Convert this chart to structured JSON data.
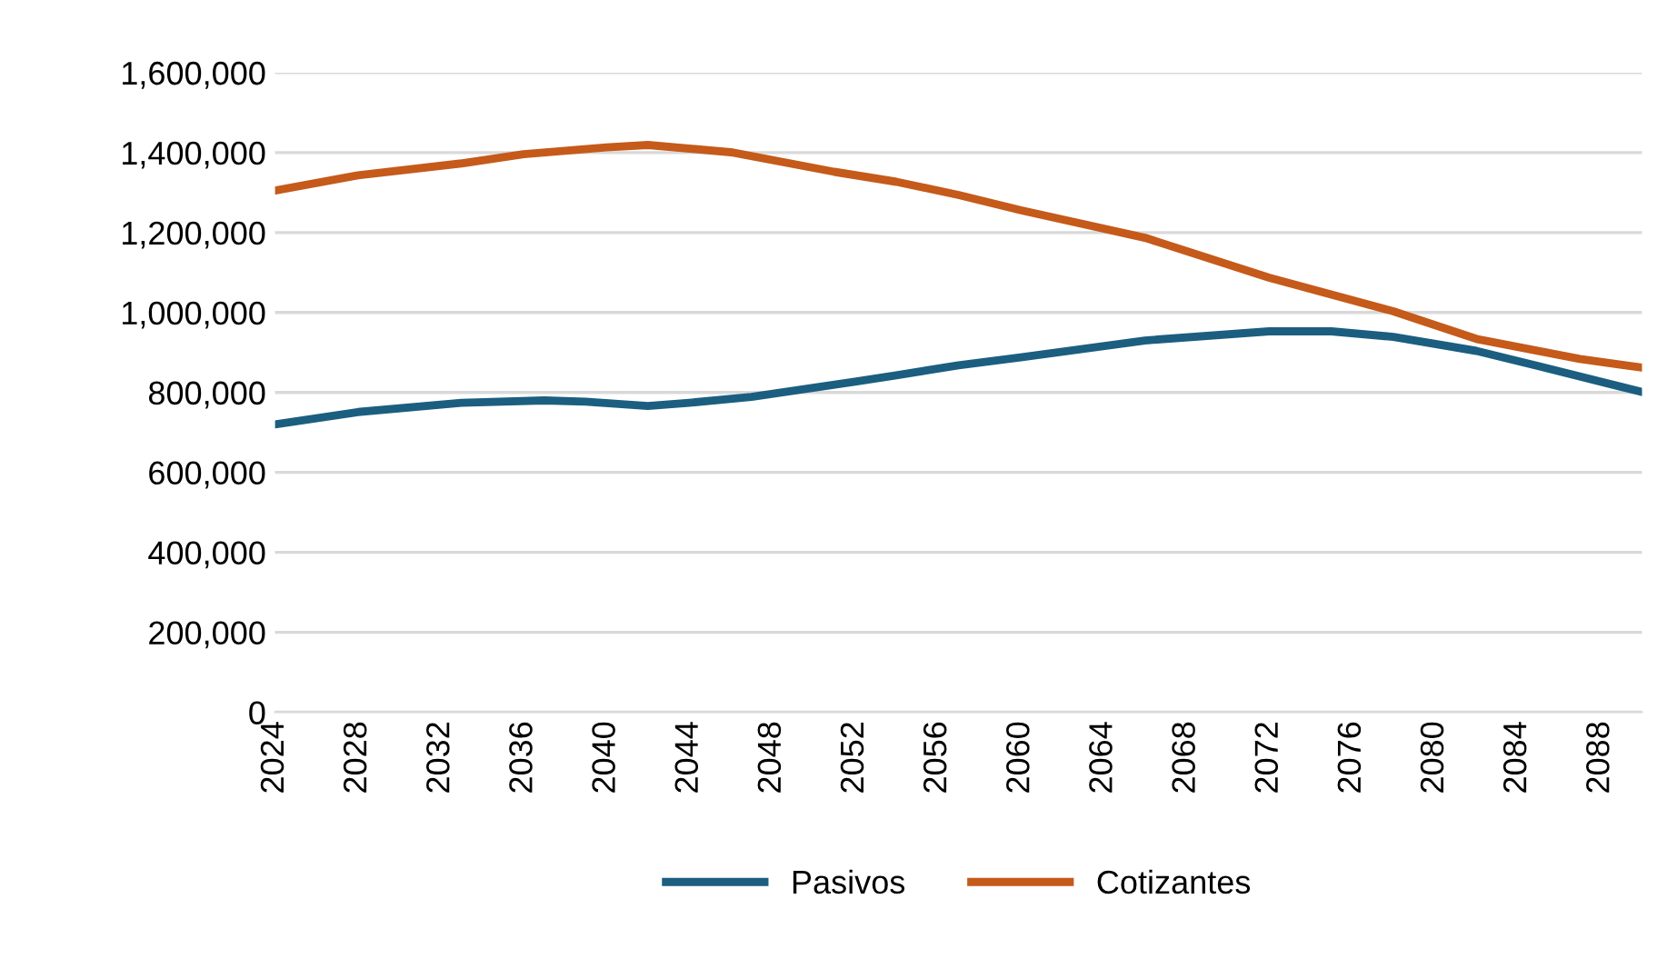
{
  "chart_data": {
    "type": "line",
    "xlim": [
      2024,
      2090
    ],
    "xticks": [
      2024,
      2028,
      2032,
      2036,
      2040,
      2044,
      2048,
      2052,
      2056,
      2060,
      2064,
      2068,
      2072,
      2076,
      2080,
      2084,
      2088
    ],
    "ylim": [
      0,
      1600000
    ],
    "yticks": [
      {
        "value": 0,
        "label": "0"
      },
      {
        "value": 200000,
        "label": "200,000"
      },
      {
        "value": 400000,
        "label": "400,000"
      },
      {
        "value": 600000,
        "label": "600,000"
      },
      {
        "value": 800000,
        "label": "800,000"
      },
      {
        "value": 1000000,
        "label": "1,000,000"
      },
      {
        "value": 1200000,
        "label": "1,200,000"
      },
      {
        "value": 1400000,
        "label": "1,400,000"
      },
      {
        "value": 1600000,
        "label": "1,600,000"
      }
    ],
    "grid": "y",
    "legend": "bottom",
    "marker": "none",
    "line_style": "solid",
    "series": [
      {
        "name": "Pasivos",
        "color": "#1b5e80",
        "x": [
          2024,
          2028,
          2033,
          2037,
          2039,
          2042,
          2044,
          2047,
          2052,
          2054,
          2057,
          2060,
          2066,
          2072,
          2075,
          2078,
          2082,
          2085,
          2090
        ],
        "values": [
          720000,
          751000,
          774000,
          780000,
          777000,
          766000,
          774000,
          789000,
          827000,
          843000,
          868000,
          888000,
          930000,
          953000,
          953000,
          939000,
          904000,
          866000,
          801000
        ]
      },
      {
        "name": "Cotizantes",
        "color": "#c55a1a",
        "x": [
          2024,
          2028,
          2033,
          2036,
          2040,
          2042,
          2046,
          2051,
          2054,
          2057,
          2060,
          2066,
          2072,
          2078,
          2082,
          2087,
          2090
        ],
        "values": [
          1305000,
          1343000,
          1373000,
          1396000,
          1413000,
          1419000,
          1401000,
          1352000,
          1327000,
          1294000,
          1256000,
          1187000,
          1087000,
          1003000,
          934000,
          884000,
          862000
        ]
      }
    ]
  }
}
